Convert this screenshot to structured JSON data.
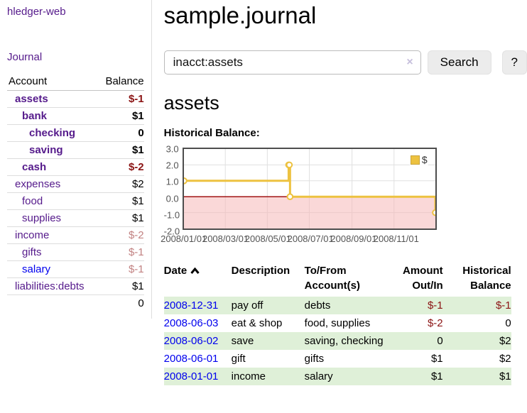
{
  "app": {
    "title": "hledger-web"
  },
  "sidebar": {
    "journal_label": "Journal",
    "accounts": {
      "header_account": "Account",
      "header_balance": "Balance",
      "rows": [
        {
          "name": "assets",
          "balance": "$-1",
          "level": 1,
          "bold": true,
          "balance_style": "negative",
          "link_color": "visited"
        },
        {
          "name": "bank",
          "balance": "$1",
          "level": 2,
          "bold": true,
          "balance_style": "normal",
          "link_color": "visited"
        },
        {
          "name": "checking",
          "balance": "0",
          "level": 3,
          "bold": true,
          "balance_style": "normal",
          "link_color": "visited"
        },
        {
          "name": "saving",
          "balance": "$1",
          "level": 3,
          "bold": true,
          "balance_style": "normal",
          "link_color": "visited"
        },
        {
          "name": "cash",
          "balance": "$-2",
          "level": 2,
          "bold": true,
          "balance_style": "negative",
          "link_color": "visited"
        },
        {
          "name": "expenses",
          "balance": "$2",
          "level": 1,
          "bold": false,
          "balance_style": "normal",
          "link_color": "visited"
        },
        {
          "name": "food",
          "balance": "$1",
          "level": 2,
          "bold": false,
          "balance_style": "normal",
          "link_color": "visited"
        },
        {
          "name": "supplies",
          "balance": "$1",
          "level": 2,
          "bold": false,
          "balance_style": "normal",
          "link_color": "visited"
        },
        {
          "name": "income",
          "balance": "$-2",
          "level": 1,
          "bold": false,
          "balance_style": "negative-muted",
          "link_color": "visited"
        },
        {
          "name": "gifts",
          "balance": "$-1",
          "level": 2,
          "bold": false,
          "balance_style": "negative-muted",
          "link_color": "visited"
        },
        {
          "name": "salary",
          "balance": "$-1",
          "level": 2,
          "bold": false,
          "balance_style": "negative-muted",
          "link_color": "unvisited"
        },
        {
          "name": "liabilities:debts",
          "balance": "$1",
          "level": 1,
          "bold": false,
          "balance_style": "normal",
          "link_color": "visited"
        }
      ],
      "total": "0"
    }
  },
  "main": {
    "title": "sample.journal",
    "search": {
      "value": "inacct:assets",
      "clear_icon": "×",
      "button_label": "Search",
      "help_label": "?"
    },
    "account_heading": "assets",
    "chart_label": "Historical Balance:"
  },
  "chart_data": {
    "type": "line",
    "mode": "steps",
    "title": "Historical Balance",
    "series": [
      {
        "name": "$",
        "color": "#edc240",
        "points": [
          [
            "2008-01-01",
            1
          ],
          [
            "2008-06-01",
            2
          ],
          [
            "2008-06-02",
            2
          ],
          [
            "2008-06-03",
            0
          ],
          [
            "2008-12-31",
            -1
          ]
        ]
      }
    ],
    "x_range": [
      "2008-01-01",
      "2008-12-31"
    ],
    "ylim": [
      -2,
      3
    ],
    "y_ticks": [
      3,
      2,
      1,
      0,
      -1,
      -2
    ],
    "x_ticks": [
      {
        "date": "2008-01-01",
        "label": "2008/01/01"
      },
      {
        "date": "2008-03-01",
        "label": "2008/03/01"
      },
      {
        "date": "2008-05-01",
        "label": "2008/05/01"
      },
      {
        "date": "2008-07-01",
        "label": "2008/07/01"
      },
      {
        "date": "2008-09-01",
        "label": "2008/09/01"
      },
      {
        "date": "2008-11-01",
        "label": "2008/11/01"
      }
    ],
    "legend_position": "top-right",
    "grid": true,
    "negative_region_color": "#f9d6d6",
    "zero_line_color": "#990000"
  },
  "register": {
    "headers": {
      "date": "Date",
      "description": "Description",
      "accounts": "To/From Account(s)",
      "amount": "Amount Out/In",
      "balance": "Historical Balance",
      "sort_icon": "chevron-up",
      "sort_direction": "asc"
    },
    "rows": [
      {
        "date": "2008-12-31",
        "description": "pay off",
        "accounts": "debts",
        "amount": "$-1",
        "amount_negative": true,
        "balance": "$-1",
        "balance_negative": true
      },
      {
        "date": "2008-06-03",
        "description": "eat & shop",
        "accounts": "food, supplies",
        "amount": "$-2",
        "amount_negative": true,
        "balance": "0",
        "balance_negative": false
      },
      {
        "date": "2008-06-02",
        "description": "save",
        "accounts": "saving, checking",
        "amount": "0",
        "amount_negative": false,
        "balance": "$2",
        "balance_negative": false
      },
      {
        "date": "2008-06-01",
        "description": "gift",
        "accounts": "gifts",
        "amount": "$1",
        "amount_negative": false,
        "balance": "$2",
        "balance_negative": false
      },
      {
        "date": "2008-01-01",
        "description": "income",
        "accounts": "salary",
        "amount": "$1",
        "amount_negative": false,
        "balance": "$1",
        "balance_negative": false
      }
    ]
  },
  "colors": {
    "link_visited": "#551A8B",
    "link_unvisited": "#0000EE",
    "negative": "#8b1414",
    "negative_muted": "#c28282",
    "stripe_green": "#dff0d8",
    "series_yellow": "#edc240",
    "chart_border": "#4d4d4d"
  }
}
